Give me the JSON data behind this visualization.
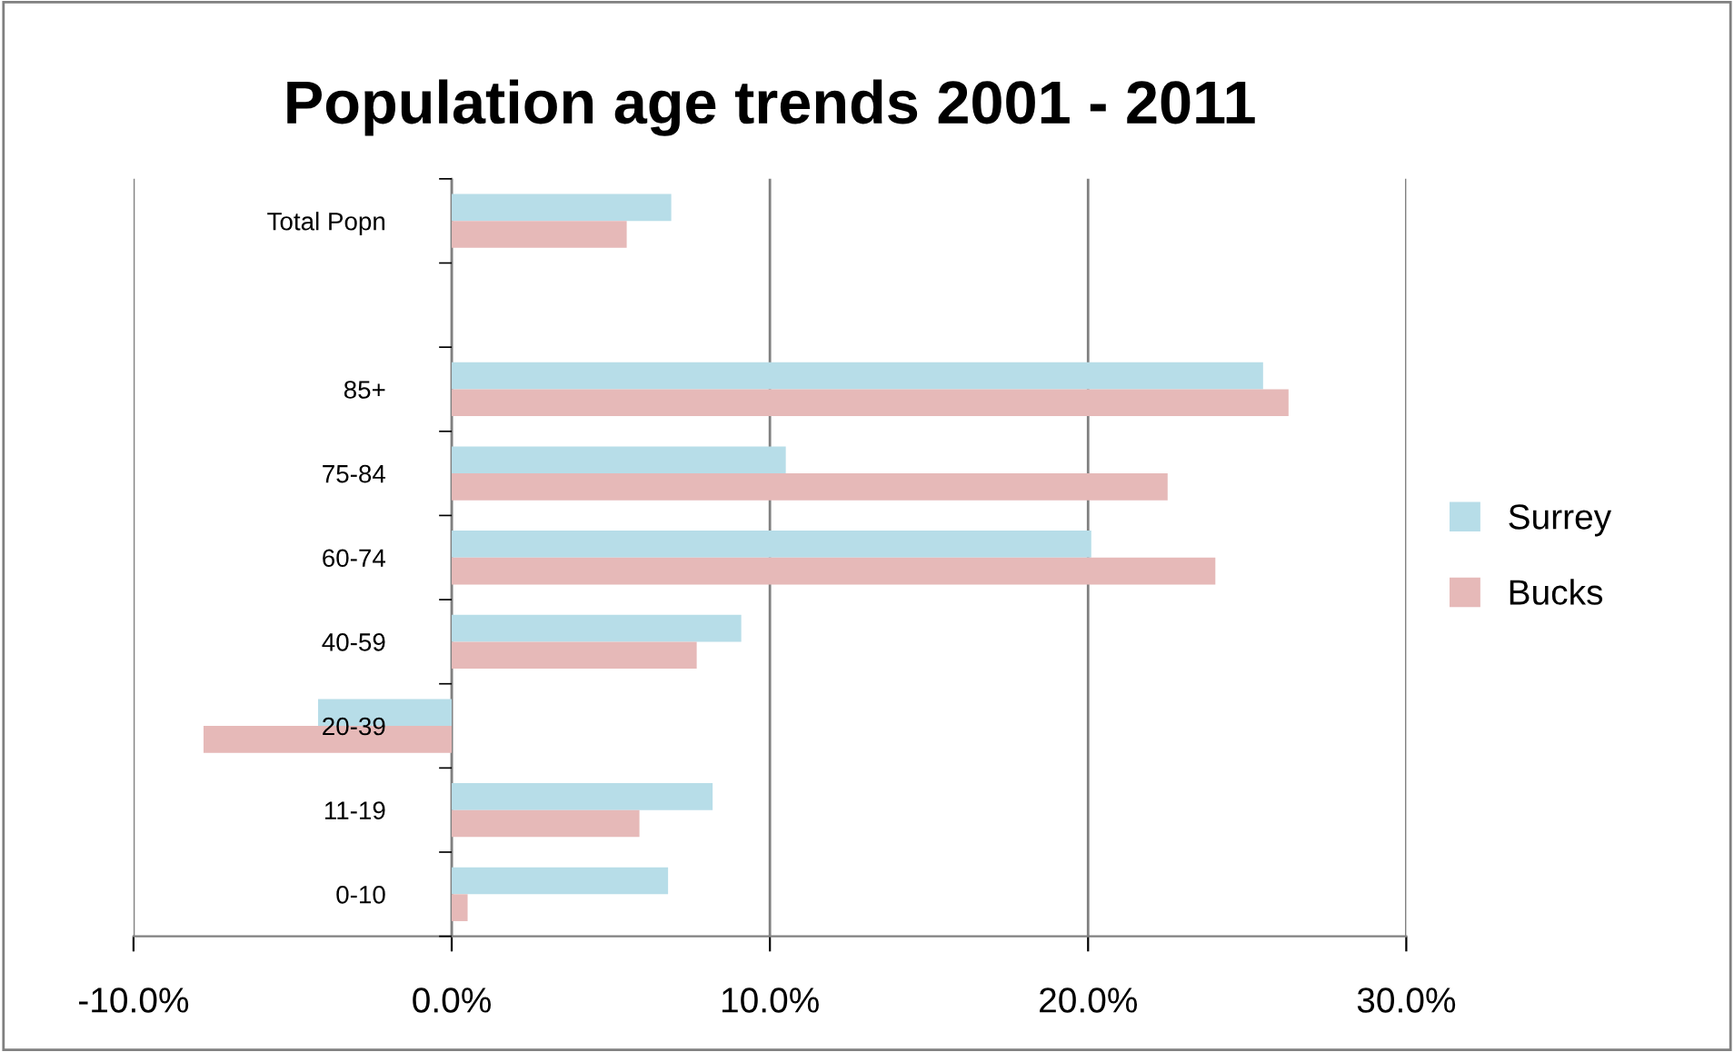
{
  "chart_data": {
    "type": "bar",
    "orientation": "horizontal",
    "title": "Population age trends 2001 - 2011",
    "categories": [
      "Total Popn",
      null,
      "85+",
      "75-84",
      "60-74",
      "40-59",
      "20-39",
      "11-19",
      "0-10"
    ],
    "series": [
      {
        "name": "Surrey",
        "color": "#b7dde8",
        "values": [
          6.9,
          null,
          25.5,
          10.5,
          20.1,
          9.1,
          -4.2,
          8.2,
          6.8
        ]
      },
      {
        "name": "Bucks",
        "color": "#e6b9b8",
        "values": [
          5.5,
          null,
          26.3,
          22.5,
          24.0,
          7.7,
          -7.8,
          5.9,
          0.5
        ]
      }
    ],
    "xlim": [
      -10,
      30
    ],
    "xticks": [
      {
        "value": -10,
        "label": "-10.0%"
      },
      {
        "value": 0,
        "label": "0.0%"
      },
      {
        "value": 10,
        "label": "10.0%"
      },
      {
        "value": 20,
        "label": "20.0%"
      },
      {
        "value": 30,
        "label": "30.0%"
      }
    ],
    "grid": "x",
    "legend": "right"
  }
}
